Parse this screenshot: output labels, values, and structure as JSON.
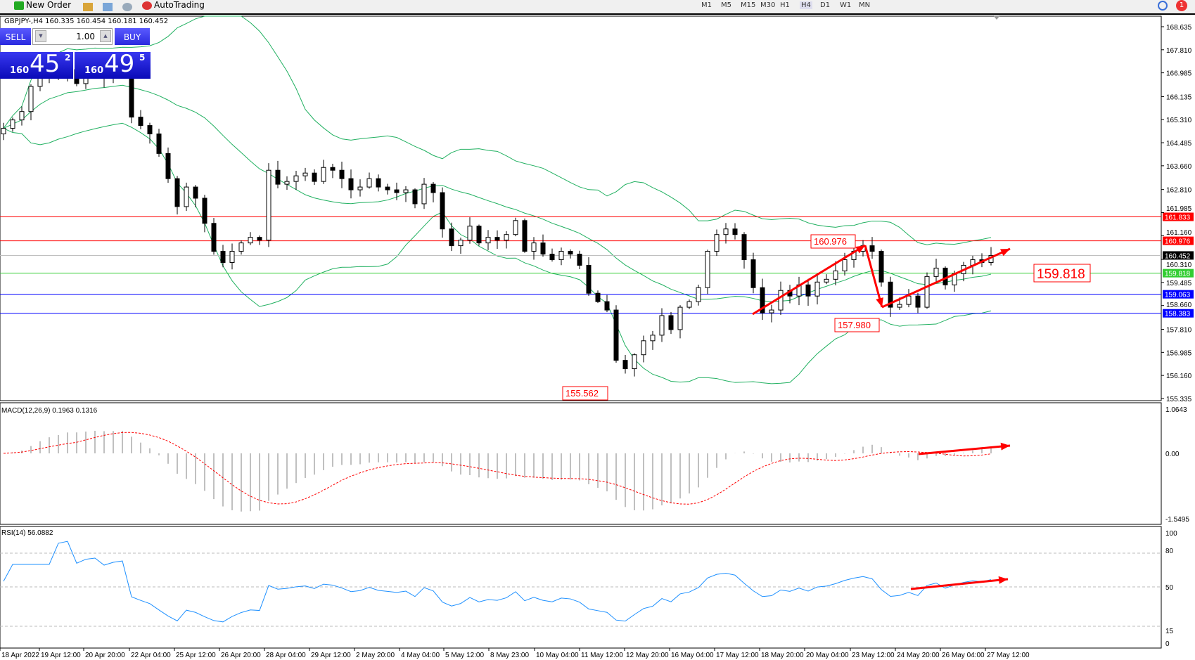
{
  "toolbar": {
    "new_order": "New Order",
    "autotrading": "AutoTrading",
    "timeframes": [
      "M1",
      "M5",
      "M15",
      "M30",
      "H1",
      "H4",
      "D1",
      "W1",
      "MN"
    ],
    "active_timeframe": "H4",
    "notification_count": "1"
  },
  "chart": {
    "title": "GBPJPY-,H4  160.335 160.454 160.181 160.452"
  },
  "trade_panel": {
    "sell_label": "SELL",
    "buy_label": "BUY",
    "lot": "1.00",
    "sell_small": "160",
    "sell_big": "45",
    "sell_pip": "2",
    "buy_small": "160",
    "buy_big": "49",
    "buy_pip": "5"
  },
  "chart_data": {
    "type": "candlestick",
    "symbol": "GBPJPY-",
    "timeframe": "H4",
    "closes": [
      165.0,
      165.3,
      165.6,
      166.5,
      166.9,
      167.0,
      166.8,
      167.1,
      166.6,
      166.9,
      167.0,
      166.8,
      167.0,
      167.1,
      165.4,
      165.1,
      164.8,
      164.1,
      163.2,
      162.2,
      162.9,
      162.5,
      161.6,
      160.6,
      160.2,
      160.6,
      160.9,
      161.1,
      161.0,
      163.5,
      163.0,
      163.1,
      163.3,
      163.4,
      163.1,
      163.6,
      163.5,
      163.2,
      162.8,
      162.9,
      163.2,
      162.9,
      162.8,
      162.7,
      162.8,
      162.3,
      163.0,
      162.7,
      161.4,
      160.8,
      161.0,
      161.5,
      160.9,
      161.1,
      161.0,
      161.2,
      161.7,
      160.6,
      160.9,
      160.5,
      160.3,
      160.6,
      160.5,
      160.1,
      159.1,
      158.8,
      158.5,
      156.7,
      156.4,
      156.9,
      157.4,
      157.6,
      158.3,
      157.8,
      158.6,
      158.8,
      159.3,
      160.6,
      161.2,
      161.4,
      161.2,
      160.3,
      159.3,
      158.4,
      158.5,
      159.2,
      159.0,
      159.4,
      159.0,
      159.5,
      159.6,
      159.9,
      160.3,
      160.6,
      160.8,
      160.6,
      159.5,
      158.6,
      158.7,
      159.0,
      158.6,
      159.7,
      160.0,
      159.4,
      159.8,
      160.1,
      160.3,
      160.2,
      160.452
    ],
    "price_axis": [
      "168.635",
      "167.810",
      "166.985",
      "166.135",
      "165.310",
      "164.485",
      "163.660",
      "162.810",
      "161.985",
      "161.160",
      "160.310",
      "159.485",
      "158.660",
      "157.810",
      "156.985",
      "156.160",
      "155.335"
    ],
    "price_range": [
      155.335,
      168.635
    ],
    "time_labels": [
      "18 Apr 2022",
      "19 Apr 12:00",
      "20 Apr 20:00",
      "22 Apr 04:00",
      "25 Apr 12:00",
      "26 Apr 20:00",
      "28 Apr 04:00",
      "29 Apr 12:00",
      "2 May 20:00",
      "4 May 04:00",
      "5 May 12:00",
      "8 May 23:00",
      "10 May 04:00",
      "11 May 12:00",
      "12 May 20:00",
      "16 May 04:00",
      "17 May 12:00",
      "18 May 20:00",
      "20 May 04:00",
      "23 May 12:00",
      "24 May 20:00",
      "26 May 04:00",
      "27 May 12:00"
    ],
    "levels": [
      {
        "price": 161.833,
        "label": "161.833",
        "color": "#ff0000"
      },
      {
        "price": 160.976,
        "label": "160.976",
        "color": "#ff0000"
      },
      {
        "price": 160.452,
        "label": "160.452",
        "color": "#000000",
        "line": "#c0c0c0"
      },
      {
        "price": 159.818,
        "label": "159.818",
        "color": "#32cd32"
      },
      {
        "price": 159.063,
        "label": "159.063",
        "color": "#0000ff"
      },
      {
        "price": 158.383,
        "label": "158.383",
        "color": "#0000ff"
      }
    ],
    "annotations": [
      "160.976",
      "157.980",
      "155.562",
      "159.818"
    ],
    "bollinger": {
      "period": 20,
      "deviation": 2,
      "color": "#20b060"
    },
    "macd": {
      "label": "MACD(12,26,9) 0.1963 0.1316",
      "axis": [
        "1.0643",
        "0.00",
        "-1.5495"
      ],
      "range": [
        -1.5495,
        1.0643
      ],
      "histogram_color": "#c0c0c0",
      "signal_color": "#ff0000"
    },
    "rsi": {
      "label": "RSI(14) 56.0882",
      "axis": [
        "100",
        "80",
        "50",
        "15",
        "0"
      ],
      "levels": [
        80,
        50,
        15
      ],
      "color": "#1e90ff"
    },
    "arrow_color": "#ff0000"
  }
}
